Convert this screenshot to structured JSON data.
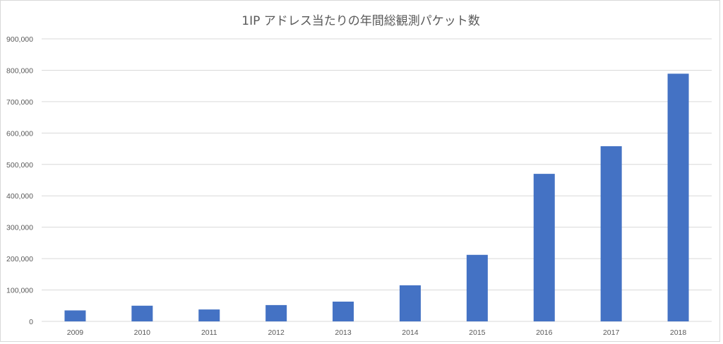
{
  "chart_data": {
    "type": "bar",
    "title": "1IP アドレス当たりの年間総観測パケット数",
    "xlabel": "",
    "ylabel": "",
    "categories": [
      "2009",
      "2010",
      "2011",
      "2012",
      "2013",
      "2014",
      "2015",
      "2016",
      "2017",
      "2018"
    ],
    "values": [
      35000,
      50000,
      38000,
      52000,
      63000,
      115000,
      212000,
      470000,
      558000,
      789000
    ],
    "ylim": [
      0,
      900000
    ],
    "yticks": [
      0,
      100000,
      200000,
      300000,
      400000,
      500000,
      600000,
      700000,
      800000,
      900000
    ],
    "ytick_labels": [
      "0",
      "100,000",
      "200,000",
      "300,000",
      "400,000",
      "500,000",
      "600,000",
      "700,000",
      "800,000",
      "900,000"
    ],
    "grid": true,
    "legend": "none",
    "bar_color": "#4472c4",
    "grid_color": "#d9d9d9"
  }
}
